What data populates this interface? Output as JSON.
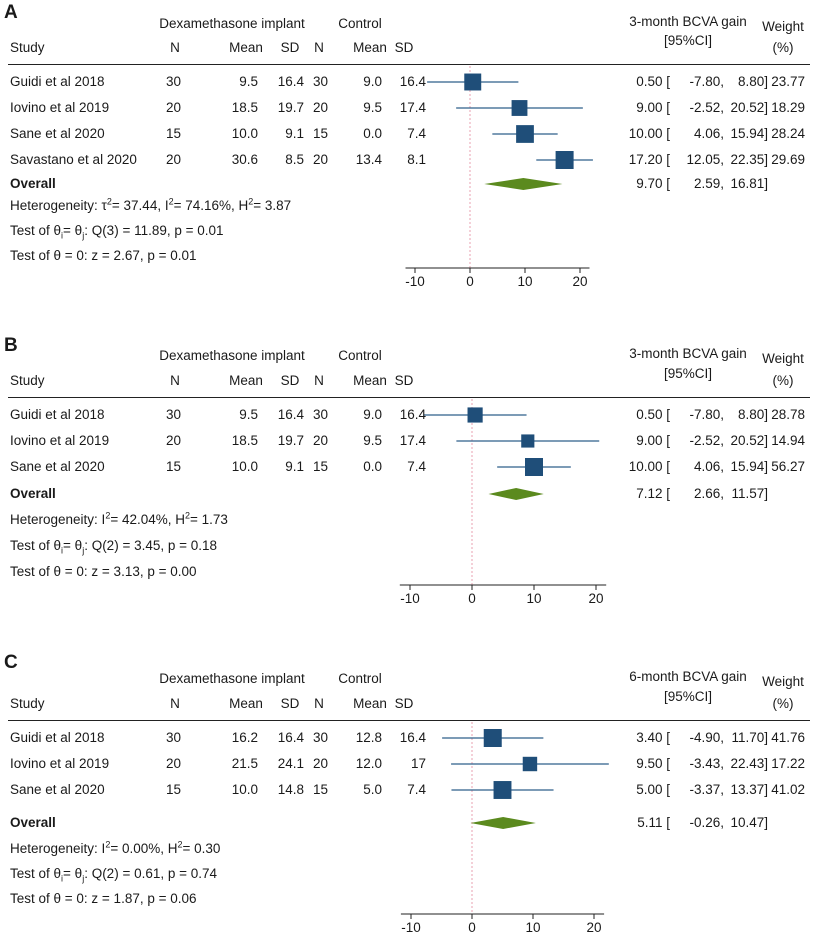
{
  "chart_data": [
    {
      "type": "forest",
      "panel": "A",
      "headers": {
        "group1": "Dexamethasone implant",
        "group2": "Control",
        "study": "Study",
        "n": "N",
        "mean": "Mean",
        "sd": "SD",
        "effect_line1": "3-month BCVA gain",
        "effect_line2": "[95%CI]",
        "weight_line1": "Weight",
        "weight_line2": "(%)"
      },
      "studies": [
        {
          "name": "Guidi et al 2018",
          "n1": "30",
          "mean1": "9.5",
          "sd1": "16.4",
          "n2": "30",
          "mean2": "9.0",
          "sd2": "16.4",
          "es": 0.5,
          "lo": -7.8,
          "hi": 8.8,
          "es_text": "0.50",
          "lo_text": "-7.80,",
          "hi_text": "8.80]",
          "weight": "23.77",
          "w": 23.77
        },
        {
          "name": "Iovino et al 2019",
          "n1": "20",
          "mean1": "18.5",
          "sd1": "19.7",
          "n2": "20",
          "mean2": "9.5",
          "sd2": "17.4",
          "es": 9.0,
          "lo": -2.52,
          "hi": 20.52,
          "es_text": "9.00",
          "lo_text": "-2.52,",
          "hi_text": "20.52]",
          "weight": "18.29",
          "w": 18.29
        },
        {
          "name": "Sane et al 2020",
          "n1": "15",
          "mean1": "10.0",
          "sd1": "9.1",
          "n2": "15",
          "mean2": "0.0",
          "sd2": "7.4",
          "es": 10.0,
          "lo": 4.06,
          "hi": 15.94,
          "es_text": "10.00",
          "lo_text": "4.06,",
          "hi_text": "15.94]",
          "weight": "28.24",
          "w": 28.24
        },
        {
          "name": "Savastano et al 2020",
          "n1": "20",
          "mean1": "30.6",
          "sd1": "8.5",
          "n2": "20",
          "mean2": "13.4",
          "sd2": "8.1",
          "es": 17.2,
          "lo": 12.05,
          "hi": 22.35,
          "es_text": "17.20",
          "lo_text": "12.05,",
          "hi_text": "22.35]",
          "weight": "29.69",
          "w": 29.69
        }
      ],
      "overall": {
        "label": "Overall",
        "es": 9.7,
        "lo": 2.59,
        "hi": 16.81,
        "es_text": "9.70",
        "lo_text": "2.59,",
        "hi_text": "16.81]"
      },
      "stats": {
        "heterogeneity": "Heterogeneity: τ2= 37.44, I2= 74.16%, H2= 3.87",
        "test_groups": "Test of θi= θj: Q(3) = 11.89, p = 0.01",
        "test_zero": "Test of θ = 0: z = 2.67, p = 0.01"
      },
      "x_ticks": [
        -10,
        0,
        10,
        20
      ],
      "xlim": [
        -11,
        21
      ]
    },
    {
      "type": "forest",
      "panel": "B",
      "headers": {
        "group1": "Dexamethasone implant",
        "group2": "Control",
        "study": "Study",
        "n": "N",
        "mean": "Mean",
        "sd": "SD",
        "effect_line1": "3-month BCVA gain",
        "effect_line2": "[95%CI]",
        "weight_line1": "Weight",
        "weight_line2": "(%)"
      },
      "studies": [
        {
          "name": "Guidi et al 2018",
          "n1": "30",
          "mean1": "9.5",
          "sd1": "16.4",
          "n2": "30",
          "mean2": "9.0",
          "sd2": "16.4",
          "es": 0.5,
          "lo": -7.8,
          "hi": 8.8,
          "es_text": "0.50",
          "lo_text": "-7.80,",
          "hi_text": "8.80]",
          "weight": "28.78",
          "w": 28.78
        },
        {
          "name": "Iovino et al 2019",
          "n1": "20",
          "mean1": "18.5",
          "sd1": "19.7",
          "n2": "20",
          "mean2": "9.5",
          "sd2": "17.4",
          "es": 9.0,
          "lo": -2.52,
          "hi": 20.52,
          "es_text": "9.00",
          "lo_text": "-2.52,",
          "hi_text": "20.52]",
          "weight": "14.94",
          "w": 14.94
        },
        {
          "name": "Sane et al 2020",
          "n1": "15",
          "mean1": "10.0",
          "sd1": "9.1",
          "n2": "15",
          "mean2": "0.0",
          "sd2": "7.4",
          "es": 10.0,
          "lo": 4.06,
          "hi": 15.94,
          "es_text": "10.00",
          "lo_text": "4.06,",
          "hi_text": "15.94]",
          "weight": "56.27",
          "w": 56.27
        }
      ],
      "overall": {
        "label": "Overall",
        "es": 7.12,
        "lo": 2.66,
        "hi": 11.57,
        "es_text": "7.12",
        "lo_text": "2.66,",
        "hi_text": "11.57]"
      },
      "stats": {
        "heterogeneity": "Heterogeneity: I2= 42.04%, H2= 1.73",
        "test_groups": "Test of θi= θj: Q(2) = 3.45, p = 0.18",
        "test_zero": "Test of θ = 0: z = 3.13, p = 0.00"
      },
      "x_ticks": [
        -10,
        0,
        10,
        20
      ],
      "xlim": [
        -11,
        21
      ]
    },
    {
      "type": "forest",
      "panel": "C",
      "headers": {
        "group1": "Dexamethasone implant",
        "group2": "Control",
        "study": "Study",
        "n": "N",
        "mean": "Mean",
        "sd": "SD",
        "effect_line1": "6-month BCVA gain",
        "effect_line2": "[95%CI]",
        "weight_line1": "Weight",
        "weight_line2": "(%)"
      },
      "studies": [
        {
          "name": "Guidi et al 2018",
          "n1": "30",
          "mean1": "16.2",
          "sd1": "16.4",
          "n2": "30",
          "mean2": "12.8",
          "sd2": "16.4",
          "es": 3.4,
          "lo": -4.9,
          "hi": 11.7,
          "es_text": "3.40",
          "lo_text": "-4.90,",
          "hi_text": "11.70]",
          "weight": "41.76",
          "w": 41.76
        },
        {
          "name": "Iovino et al 2019",
          "n1": "20",
          "mean1": "21.5",
          "sd1": "24.1",
          "n2": "20",
          "mean2": "12.0",
          "sd2": "17",
          "es": 9.5,
          "lo": -3.43,
          "hi": 22.43,
          "es_text": "9.50",
          "lo_text": "-3.43,",
          "hi_text": "22.43]",
          "weight": "17.22",
          "w": 17.22
        },
        {
          "name": "Sane et al 2020",
          "n1": "15",
          "mean1": "10.0",
          "sd1": "14.8",
          "n2": "15",
          "mean2": "5.0",
          "sd2": "7.4",
          "es": 5.0,
          "lo": -3.37,
          "hi": 13.37,
          "es_text": "5.00",
          "lo_text": "-3.37,",
          "hi_text": "13.37]",
          "weight": "41.02",
          "w": 41.02
        }
      ],
      "overall": {
        "label": "Overall",
        "es": 5.11,
        "lo": -0.26,
        "hi": 10.47,
        "es_text": "5.11",
        "lo_text": "-0.26,",
        "hi_text": "10.47]"
      },
      "stats": {
        "heterogeneity": "Heterogeneity: I2= 0.00%, H2= 0.30",
        "test_groups": "Test of θi= θj: Q(2) = 0.61, p = 0.74",
        "test_zero": "Test of θ = 0: z = 1.87, p = 0.06"
      },
      "x_ticks": [
        -10,
        0,
        10,
        20
      ],
      "xlim": [
        -11,
        21
      ]
    }
  ],
  "colors": {
    "marker": "#1f4e79",
    "ci_line": "#2e5f8a",
    "diamond": "#5b8a1e",
    "null_line": "#e8a0b0",
    "text": "#1a1a1a"
  }
}
